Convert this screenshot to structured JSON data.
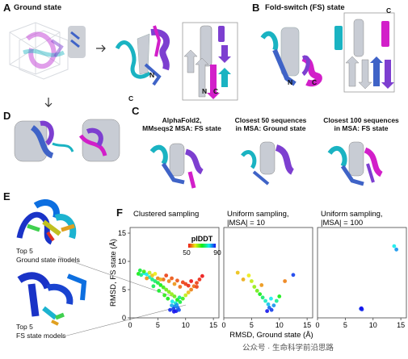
{
  "panels": {
    "A": {
      "letter": "A",
      "title": "Ground state",
      "labels": {
        "c": "C",
        "n": "N",
        "n2": "N",
        "c2": "C"
      }
    },
    "B": {
      "letter": "B",
      "title": "Fold-switch (FS) state",
      "labels": {
        "n": "N",
        "c": "C",
        "top_c": "C",
        "n2": "N",
        "c2": "C"
      }
    },
    "C": {
      "letter": "C",
      "captions": [
        {
          "l1": "AlphaFold2,",
          "l2": "MMseqs2 MSA: FS state"
        },
        {
          "l1": "Closest 50 sequences",
          "l2": "in MSA: Ground state"
        },
        {
          "l1": "Closest 100 sequences",
          "l2": "in MSA: FS state"
        }
      ]
    },
    "D": {
      "letter": "D"
    },
    "E": {
      "letter": "E",
      "top_label": {
        "l1": "Top 5",
        "l2": "Ground state models"
      },
      "bottom_label": {
        "l1": "Top 5",
        "l2": "FS state models"
      }
    },
    "F": {
      "letter": "F"
    }
  },
  "chart_data": [
    {
      "type": "scatter",
      "title": "Clustered sampling",
      "xlabel": "RMSD, Ground state (Å)",
      "ylabel": "RMSD, FS state (Å)",
      "xlim": [
        0,
        16
      ],
      "ylim": [
        0,
        16
      ],
      "xticks": [
        "0",
        "5",
        "10",
        "15"
      ],
      "yticks": [
        "0",
        "5",
        "10",
        "15"
      ],
      "colorbar": {
        "label": "pIDDT",
        "min": "50",
        "max": "90"
      },
      "points": [
        [
          1.5,
          7.8,
          70
        ],
        [
          2,
          7.6,
          75
        ],
        [
          2.5,
          7.9,
          80
        ],
        [
          3,
          7.7,
          80
        ],
        [
          3.5,
          7.2,
          78
        ],
        [
          4,
          6.8,
          75
        ],
        [
          4.5,
          6.5,
          74
        ],
        [
          5,
          6.2,
          72
        ],
        [
          5.5,
          5.8,
          70
        ],
        [
          6,
          5.4,
          68
        ],
        [
          6.5,
          5,
          66
        ],
        [
          7,
          4.6,
          65
        ],
        [
          7.5,
          4.2,
          64
        ],
        [
          8,
          3.8,
          66
        ],
        [
          8.5,
          3.2,
          70
        ],
        [
          8.2,
          2.6,
          78
        ],
        [
          8,
          2,
          85
        ],
        [
          7.8,
          1.6,
          88
        ],
        [
          8.3,
          1.2,
          90
        ],
        [
          8.6,
          1.8,
          86
        ],
        [
          7.5,
          2.2,
          83
        ],
        [
          9,
          2.8,
          72
        ],
        [
          9.5,
          3.4,
          68
        ],
        [
          10,
          4,
          62
        ],
        [
          10.5,
          4.5,
          58
        ],
        [
          11,
          5,
          55
        ],
        [
          11.5,
          5.6,
          54
        ],
        [
          12,
          6.2,
          52
        ],
        [
          12.5,
          6.8,
          51
        ],
        [
          13,
          7.4,
          50
        ],
        [
          3,
          7,
          56
        ],
        [
          4,
          7.5,
          58
        ],
        [
          5,
          7,
          55
        ],
        [
          6,
          6.8,
          54
        ],
        [
          7,
          6.5,
          55
        ],
        [
          8,
          6,
          56
        ],
        [
          9,
          5.5,
          54
        ],
        [
          10,
          6,
          52
        ],
        [
          6.5,
          7.5,
          52
        ],
        [
          7.5,
          7,
          53
        ],
        [
          5.5,
          6.8,
          57
        ],
        [
          4.5,
          7.8,
          60
        ],
        [
          3.5,
          8,
          62
        ],
        [
          2.5,
          8.2,
          68
        ],
        [
          1.8,
          8.4,
          72
        ],
        [
          8.5,
          6.6,
          53
        ],
        [
          9.5,
          6.3,
          52
        ],
        [
          10.5,
          5.7,
          51
        ],
        [
          11,
          6.5,
          50
        ],
        [
          12,
          5.5,
          52
        ],
        [
          7.2,
          1.4,
          89
        ],
        [
          7.9,
          1.1,
          90
        ],
        [
          8.8,
          1.4,
          87
        ],
        [
          8.4,
          2.3,
          84
        ],
        [
          7.6,
          2.9,
          80
        ],
        [
          8.9,
          3.6,
          75
        ],
        [
          6.8,
          3.4,
          70
        ],
        [
          6.2,
          4,
          69
        ],
        [
          5.2,
          4.8,
          71
        ],
        [
          4.2,
          5.6,
          73
        ]
      ]
    },
    {
      "type": "scatter",
      "title": "Uniform sampling,",
      "title2": "|MSA| = 10",
      "xlim": [
        0,
        16
      ],
      "ylim": [
        0,
        16
      ],
      "xticks": [
        "0",
        "5",
        "10",
        "15"
      ],
      "points": [
        [
          2.5,
          8,
          58
        ],
        [
          3.5,
          6.8,
          57
        ],
        [
          4.5,
          7.5,
          60
        ],
        [
          5,
          6.5,
          62
        ],
        [
          5.5,
          5.5,
          64
        ],
        [
          6,
          4.8,
          66
        ],
        [
          6.5,
          4.2,
          70
        ],
        [
          7,
          3.6,
          74
        ],
        [
          7.5,
          3,
          78
        ],
        [
          8,
          2.4,
          82
        ],
        [
          8.2,
          1.8,
          86
        ],
        [
          8.6,
          1.4,
          88
        ],
        [
          7.8,
          1.2,
          90
        ],
        [
          9,
          2.2,
          84
        ],
        [
          9.5,
          3,
          76
        ],
        [
          10,
          3.8,
          70
        ],
        [
          12.5,
          7.6,
          88
        ],
        [
          11,
          6.5,
          55
        ],
        [
          6.8,
          5.8,
          56
        ],
        [
          8.5,
          3.4,
          80
        ]
      ]
    },
    {
      "type": "scatter",
      "title": "Uniform sampling,",
      "title2": "|MSA| = 100",
      "xlim": [
        0,
        16
      ],
      "ylim": [
        0,
        16
      ],
      "xticks": [
        "0",
        "5",
        "10",
        "15"
      ],
      "points": [
        [
          7.8,
          1.6,
          88
        ],
        [
          8,
          1.5,
          89
        ],
        [
          7.9,
          1.7,
          90
        ],
        [
          13.8,
          12.7,
          80
        ],
        [
          14.2,
          12.1,
          84
        ]
      ]
    }
  ],
  "colors": {
    "cyan": "#1ab3c2",
    "magenta": "#d21fc9",
    "purple": "#7d3fd0",
    "blue": "#3f63c7",
    "grey": "#c8ccd4"
  },
  "watermark": "公众号 · 生命科学前沿思路"
}
